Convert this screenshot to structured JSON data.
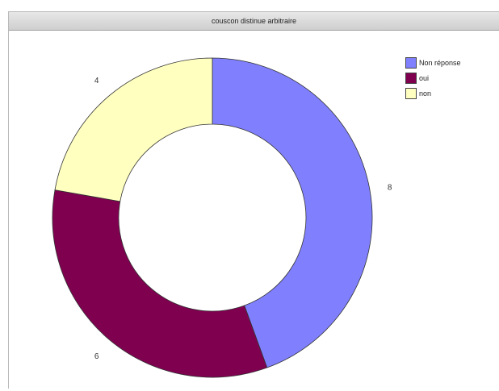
{
  "window": {
    "title": "couscon distinue arbitraire"
  },
  "chart_data": {
    "type": "pie",
    "donut": true,
    "title": "couscon distinue arbitraire",
    "categories": [
      "Non réponse",
      "oui",
      "non"
    ],
    "values": [
      8,
      6,
      4
    ],
    "colors": [
      "#8080ff",
      "#800050",
      "#ffffc0"
    ],
    "legend_position": "top-right"
  }
}
